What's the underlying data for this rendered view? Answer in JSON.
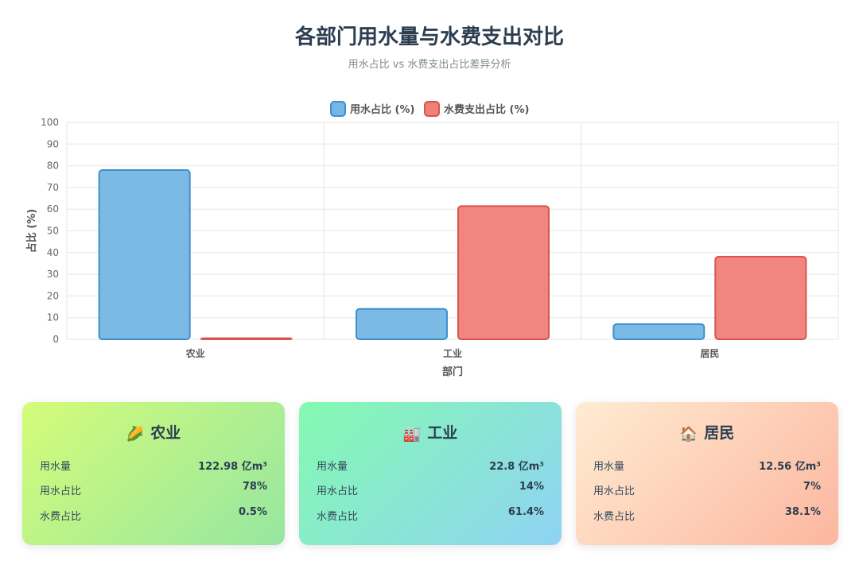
{
  "header": {
    "title": "各部门用水量与水费支出对比",
    "subtitle": "用水占比 vs 水费支出占比差异分析"
  },
  "colors": {
    "water_share": "#74b6e4",
    "water_share_border": "#3f8fcf",
    "fee_share": "#ef8078",
    "fee_share_border": "#d9534f",
    "grid": "#e6e6e6",
    "axis_text": "#666666"
  },
  "chart_data": {
    "type": "bar",
    "categories": [
      "农业",
      "工业",
      "居民"
    ],
    "series": [
      {
        "name": "用水占比 (%)",
        "values": [
          78,
          14,
          7
        ]
      },
      {
        "name": "水费支出占比 (%)",
        "values": [
          0.5,
          61.4,
          38.1
        ]
      }
    ],
    "xlabel": "部门",
    "ylabel": "占比 (%)",
    "ylim": [
      0,
      100
    ],
    "yticks": [
      0,
      10,
      20,
      30,
      40,
      50,
      60,
      70,
      80,
      90,
      100
    ],
    "grid": true,
    "legend_position": "top"
  },
  "cards": [
    {
      "icon": "corn-icon",
      "icon_glyph": "🌽",
      "title": "农业",
      "rows": [
        {
          "label": "用水量",
          "value": "122.98 亿m³"
        },
        {
          "label": "用水占比",
          "value": "78%"
        },
        {
          "label": "水费占比",
          "value": "0.5%"
        }
      ]
    },
    {
      "icon": "factory-icon",
      "icon_glyph": "🏭",
      "title": "工业",
      "rows": [
        {
          "label": "用水量",
          "value": "22.8 亿m³"
        },
        {
          "label": "用水占比",
          "value": "14%"
        },
        {
          "label": "水费占比",
          "value": "61.4%"
        }
      ]
    },
    {
      "icon": "house-icon",
      "icon_glyph": "🏠",
      "title": "居民",
      "rows": [
        {
          "label": "用水量",
          "value": "12.56 亿m³"
        },
        {
          "label": "用水占比",
          "value": "7%"
        },
        {
          "label": "水费占比",
          "value": "38.1%"
        }
      ]
    }
  ]
}
